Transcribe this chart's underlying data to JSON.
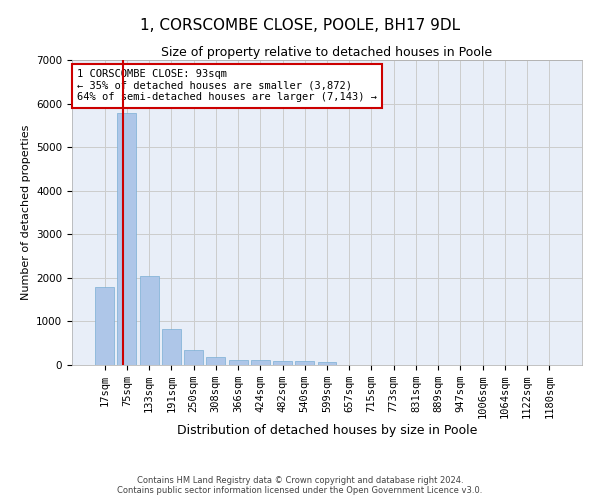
{
  "title": "1, CORSCOMBE CLOSE, POOLE, BH17 9DL",
  "subtitle": "Size of property relative to detached houses in Poole",
  "xlabel": "Distribution of detached houses by size in Poole",
  "ylabel": "Number of detached properties",
  "categories": [
    "17sqm",
    "75sqm",
    "133sqm",
    "191sqm",
    "250sqm",
    "308sqm",
    "366sqm",
    "424sqm",
    "482sqm",
    "540sqm",
    "599sqm",
    "657sqm",
    "715sqm",
    "773sqm",
    "831sqm",
    "889sqm",
    "947sqm",
    "1006sqm",
    "1064sqm",
    "1122sqm",
    "1180sqm"
  ],
  "values": [
    1780,
    5780,
    2050,
    820,
    340,
    190,
    120,
    110,
    100,
    85,
    60,
    0,
    0,
    0,
    0,
    0,
    0,
    0,
    0,
    0,
    0
  ],
  "bar_color": "#aec6e8",
  "bar_edge_color": "#7aafd4",
  "annotation_line1": "1 CORSCOMBE CLOSE: 93sqm",
  "annotation_line2": "← 35% of detached houses are smaller (3,872)",
  "annotation_line3": "64% of semi-detached houses are larger (7,143) →",
  "annotation_box_color": "#ffffff",
  "annotation_box_edge_color": "#cc0000",
  "ylim": [
    0,
    7000
  ],
  "yticks": [
    0,
    1000,
    2000,
    3000,
    4000,
    5000,
    6000,
    7000
  ],
  "grid_color": "#cccccc",
  "background_color": "#e8eef8",
  "footer_line1": "Contains HM Land Registry data © Crown copyright and database right 2024.",
  "footer_line2": "Contains public sector information licensed under the Open Government Licence v3.0.",
  "title_fontsize": 11,
  "subtitle_fontsize": 9,
  "xlabel_fontsize": 9,
  "ylabel_fontsize": 8,
  "tick_fontsize": 7.5
}
